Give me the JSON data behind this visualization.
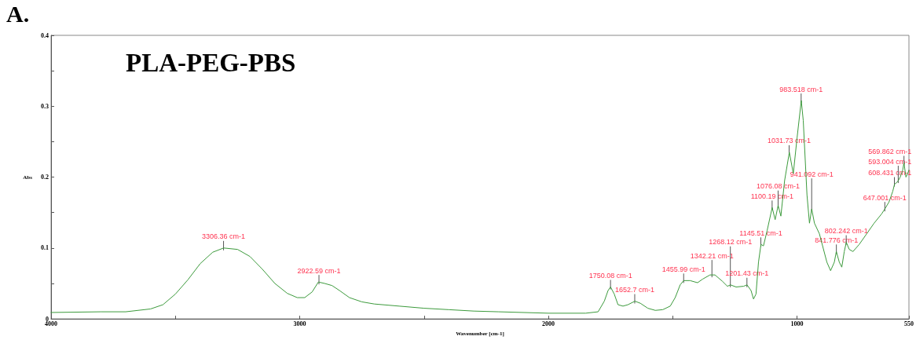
{
  "chart_data": {
    "type": "line",
    "title": "PLA-PEG-PBS",
    "xlabel": "Wavenumber [cm-1]",
    "ylabel": "Abs",
    "xlim": [
      4000,
      550
    ],
    "xticks": [
      4000,
      {
        "value": 3500,
        "label": null
      },
      3000,
      {
        "value": 2500,
        "label": null
      },
      2000,
      {
        "value": 1500,
        "label": null
      },
      1000,
      550
    ],
    "ylim": [
      0,
      0.4
    ],
    "yticks": [
      0,
      {
        "value": 0.05,
        "label": null
      },
      0.1,
      {
        "value": 0.15,
        "label": null
      },
      0.2,
      {
        "value": 0.25,
        "label": null
      },
      0.3,
      {
        "value": 0.35,
        "label": null
      },
      0.4
    ],
    "grid": false,
    "marker": "none",
    "line_style": "solid",
    "series": [
      {
        "color": "#3c9a3c",
        "x": [
          4000,
          3800,
          3700,
          3600,
          3550,
          3500,
          3450,
          3400,
          3350,
          3306,
          3250,
          3200,
          3150,
          3100,
          3050,
          3010,
          2980,
          2950,
          2925,
          2900,
          2870,
          2840,
          2800,
          2750,
          2700,
          2600,
          2500,
          2400,
          2300,
          2200,
          2000,
          1850,
          1800,
          1775,
          1760,
          1750,
          1735,
          1720,
          1700,
          1680,
          1652,
          1630,
          1600,
          1570,
          1540,
          1510,
          1490,
          1470,
          1456,
          1430,
          1400,
          1380,
          1350,
          1330,
          1300,
          1280,
          1268,
          1245,
          1215,
          1201,
          1185,
          1175,
          1165,
          1155,
          1145,
          1135,
          1120,
          1100,
          1088,
          1076,
          1065,
          1050,
          1031,
          1015,
          1000,
          983,
          975,
          960,
          950,
          941,
          930,
          910,
          880,
          865,
          850,
          842,
          830,
          820,
          810,
          802,
          790,
          775,
          750,
          720,
          690,
          660,
          647,
          630,
          615,
          608,
          600,
          593,
          585,
          575,
          570,
          562,
          555,
          550
        ],
        "values": [
          0.009,
          0.01,
          0.01,
          0.014,
          0.02,
          0.035,
          0.055,
          0.078,
          0.094,
          0.1,
          0.098,
          0.088,
          0.07,
          0.05,
          0.036,
          0.03,
          0.03,
          0.038,
          0.052,
          0.05,
          0.047,
          0.04,
          0.03,
          0.024,
          0.021,
          0.018,
          0.015,
          0.013,
          0.011,
          0.01,
          0.008,
          0.008,
          0.01,
          0.025,
          0.04,
          0.045,
          0.035,
          0.02,
          0.018,
          0.02,
          0.025,
          0.022,
          0.015,
          0.012,
          0.013,
          0.018,
          0.03,
          0.048,
          0.054,
          0.054,
          0.051,
          0.056,
          0.062,
          0.062,
          0.053,
          0.046,
          0.048,
          0.045,
          0.046,
          0.048,
          0.04,
          0.028,
          0.035,
          0.08,
          0.105,
          0.103,
          0.125,
          0.157,
          0.14,
          0.16,
          0.145,
          0.195,
          0.235,
          0.205,
          0.255,
          0.308,
          0.28,
          0.175,
          0.135,
          0.155,
          0.135,
          0.12,
          0.08,
          0.068,
          0.08,
          0.095,
          0.08,
          0.073,
          0.095,
          0.108,
          0.098,
          0.095,
          0.105,
          0.12,
          0.135,
          0.148,
          0.155,
          0.165,
          0.18,
          0.19,
          0.192,
          0.195,
          0.2,
          0.21,
          0.22,
          0.2,
          0.205,
          0.21
        ]
      }
    ],
    "annotations": [
      "A.",
      {
        "text": "3306.36 cm-1",
        "x": 3306.36,
        "y": 0.1
      },
      {
        "text": "2922.59 cm-1",
        "x": 2922.59,
        "y": 0.052
      },
      {
        "text": "1750.08 cm-1",
        "x": 1750.08,
        "y": 0.045
      },
      {
        "text": "1652.7 cm-1",
        "x": 1652.7,
        "y": 0.025
      },
      {
        "text": "1455.99 cm-1",
        "x": 1455.99,
        "y": 0.054
      },
      {
        "text": "1342.21 cm-1",
        "x": 1342.21,
        "y": 0.062
      },
      {
        "text": "1268.12 cm-1",
        "x": 1268.12,
        "y": 0.048
      },
      {
        "text": "1201.43 cm-1",
        "x": 1201.43,
        "y": 0.048
      },
      {
        "text": "1145.51 cm-1",
        "x": 1145.51,
        "y": 0.105
      },
      {
        "text": "1100.19 cm-1",
        "x": 1100.19,
        "y": 0.157
      },
      {
        "text": "1076.08 cm-1",
        "x": 1076.08,
        "y": 0.16
      },
      {
        "text": "1031.73 cm-1",
        "x": 1031.73,
        "y": 0.235
      },
      {
        "text": "983.518 cm-1",
        "x": 983.518,
        "y": 0.308
      },
      {
        "text": "941.092 cm-1",
        "x": 941.092,
        "y": 0.155
      },
      {
        "text": "841.776 cm-1",
        "x": 841.776,
        "y": 0.095
      },
      {
        "text": "802.242 cm-1",
        "x": 802.242,
        "y": 0.108
      },
      {
        "text": "647.001 cm-1",
        "x": 647.001,
        "y": 0.155
      },
      {
        "text": "608.431 cm-1",
        "x": 608.431,
        "y": 0.19
      },
      {
        "text": "593.004 cm-1",
        "x": 593.004,
        "y": 0.195
      },
      {
        "text": "569.862 cm-1",
        "x": 569.862,
        "y": 0.22
      }
    ]
  }
}
